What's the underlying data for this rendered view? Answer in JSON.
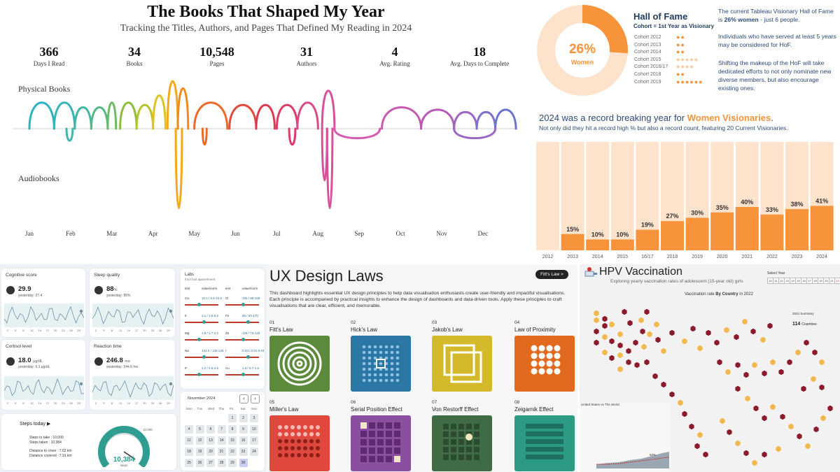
{
  "books": {
    "title": "The Books That Shaped My Year",
    "subtitle": "Tracking the Titles, Authors, and Pages That Defined My Reading in 2024",
    "stats": [
      {
        "value": "366",
        "label": "Days I Read"
      },
      {
        "value": "34",
        "label": "Books"
      },
      {
        "value": "10,548",
        "label": "Pages"
      },
      {
        "value": "31",
        "label": "Authors"
      },
      {
        "value": "4",
        "label": "Avg. Rating"
      },
      {
        "value": "18",
        "label": "Avg. Days to Complete"
      }
    ],
    "lane_physical": "Physical Books",
    "lane_audio": "Audiobooks",
    "months": [
      "Jan",
      "Feb",
      "Mar",
      "Apr",
      "May",
      "Jun",
      "Jul",
      "Aug",
      "Sep",
      "Oct",
      "Nov",
      "Dec"
    ]
  },
  "chart_data": [
    {
      "type": "arc-timeline",
      "title": "The Books That Shaped My Year",
      "x_categories": [
        "Jan",
        "Feb",
        "Mar",
        "Apr",
        "May",
        "Jun",
        "Jul",
        "Aug",
        "Sep",
        "Oct",
        "Nov",
        "Dec"
      ],
      "series": [
        {
          "name": "Physical Books",
          "books": [
            {
              "start": 0.0,
              "end": 0.6,
              "h": 0.55,
              "color": "#2bb3c0"
            },
            {
              "start": 0.6,
              "end": 1.1,
              "h": 0.55,
              "color": "#36b4b8"
            },
            {
              "start": 1.1,
              "end": 1.5,
              "h": 0.45,
              "color": "#3fb7a2"
            },
            {
              "start": 1.5,
              "end": 1.9,
              "h": 0.45,
              "color": "#56b886"
            },
            {
              "start": 1.9,
              "end": 2.1,
              "h": 0.55,
              "color": "#6cba62"
            },
            {
              "start": 2.2,
              "end": 2.6,
              "h": 0.55,
              "color": "#8dbd3a"
            },
            {
              "start": 2.6,
              "end": 3.0,
              "h": 0.5,
              "color": "#b6c428"
            },
            {
              "start": 3.0,
              "end": 3.3,
              "h": 0.7,
              "color": "#e0c31f"
            },
            {
              "start": 3.35,
              "end": 3.6,
              "h": 1.0,
              "color": "#f2a91c"
            },
            {
              "start": 3.6,
              "end": 3.85,
              "h": 0.85,
              "color": "#f08a1d"
            },
            {
              "start": 4.0,
              "end": 4.8,
              "h": 0.55,
              "color": "#ec6a25"
            },
            {
              "start": 4.85,
              "end": 5.5,
              "h": 0.5,
              "color": "#e04a3a"
            },
            {
              "start": 5.5,
              "end": 5.95,
              "h": 0.5,
              "color": "#de3a4f"
            },
            {
              "start": 6.0,
              "end": 6.5,
              "h": 0.5,
              "color": "#da3d6a"
            },
            {
              "start": 6.5,
              "end": 7.0,
              "h": 0.55,
              "color": "#d84a88"
            },
            {
              "start": 7.1,
              "end": 7.4,
              "h": 0.8,
              "color": "#d94f9a"
            },
            {
              "start": 8.55,
              "end": 9.5,
              "h": 0.45,
              "color": "#c85aad"
            },
            {
              "start": 9.5,
              "end": 10.3,
              "h": 0.4,
              "color": "#b45db6"
            },
            {
              "start": 10.3,
              "end": 10.85,
              "h": 0.35,
              "color": "#9b66c4"
            },
            {
              "start": 10.85,
              "end": 11.3,
              "h": 0.35,
              "color": "#7e6fcb"
            },
            {
              "start": 11.3,
              "end": 11.8,
              "h": 0.4,
              "color": "#6a74cf"
            }
          ]
        },
        {
          "name": "Audiobooks",
          "books": [
            {
              "start": 0.9,
              "end": 1.05,
              "h": 0.15,
              "color": "#3fb7b0"
            },
            {
              "start": 3.55,
              "end": 3.7,
              "h": 1.0,
              "color": "#f2a91c"
            },
            {
              "start": 4.2,
              "end": 4.3,
              "h": 0.2,
              "color": "#ec6a25"
            },
            {
              "start": 6.3,
              "end": 6.45,
              "h": 0.2,
              "color": "#da3d6a"
            },
            {
              "start": 7.1,
              "end": 7.22,
              "h": 0.65,
              "color": "#d94f9a"
            },
            {
              "start": 7.22,
              "end": 7.35,
              "h": 1.0,
              "color": "#d94f9a"
            },
            {
              "start": 7.4,
              "end": 8.5,
              "h": 0.12,
              "color": "#d65ab0"
            },
            {
              "start": 10.3,
              "end": 11.3,
              "h": 0.12,
              "color": "#9b66c4"
            }
          ]
        }
      ]
    },
    {
      "type": "pie",
      "title": "Hall of Fame",
      "labels": [
        "Women",
        "Other"
      ],
      "values": [
        26,
        74
      ],
      "center_label": "26%",
      "center_sub": "Women"
    },
    {
      "type": "bar",
      "title": "2024 was a record breaking year for Women Visionaries.",
      "categories": [
        "2012",
        "2013",
        "2014",
        "2015",
        "16/17",
        "2018",
        "2019",
        "2020",
        "2021",
        "2022",
        "2023",
        "2024"
      ],
      "values": [
        0,
        15,
        10,
        10,
        19,
        27,
        30,
        35,
        40,
        33,
        38,
        41
      ],
      "labels": [
        "",
        "15%",
        "10%",
        "10%",
        "19%",
        "27%",
        "30%",
        "35%",
        "40%",
        "33%",
        "38%",
        "41%"
      ],
      "ylim": [
        0,
        100
      ]
    }
  ],
  "women": {
    "donut_pct": "26%",
    "donut_label": "Women",
    "hof_title": "Hall of Fame",
    "hof_sub": "Cohort = 1st Year as Visionary",
    "cohorts": [
      {
        "name": "Cohort 2012",
        "dots": "●●"
      },
      {
        "name": "Cohort 2013",
        "dots": "●●"
      },
      {
        "name": "Cohort 2014",
        "dots": "●●"
      },
      {
        "name": "Cohort 2015",
        "dots": "●●●●●"
      },
      {
        "name": "Cohort 2016/17",
        "dots": "●●●●"
      },
      {
        "name": "Cohort 2018",
        "dots": "●●"
      },
      {
        "name": "Cohort 2019",
        "dots": "●●●●●●"
      }
    ],
    "text1_a": "The current Tableau Visionary Hall of Fame is ",
    "text1_b": "26% women",
    "text1_c": " - just 6 people.",
    "text2": "Individuals who have served at least 5 years may be considered for HoF.",
    "text3": "Shifting the makeup of the HoF will take dedicated efforts to not only nominate new diverse members, but also encourage existing ones.",
    "record_a": "2024 was a record breaking  year for ",
    "record_b": "Women Visionaries",
    "record_c": ".",
    "record_sub": "Not only did they hit a record high % but also a record count, featuring 20 Current Visionaries.",
    "accent": "#f7933a"
  },
  "health": {
    "cards": [
      {
        "title": "Cognitive score",
        "value": "29.9",
        "unit": "",
        "yesterday": "yesterday: 27.4"
      },
      {
        "title": "Sleep quality",
        "value": "88",
        "unit": "%",
        "yesterday": "yesterday: 85%"
      },
      {
        "title": "Cortisol level",
        "value": "18.0",
        "unit": "µg/dL",
        "yesterday": "yesterday: 6.1 µg/dL"
      },
      {
        "title": "Reaction time",
        "value": "246.8",
        "unit": "ms",
        "yesterday": "yesterday: 244.6 ms"
      }
    ],
    "ticks": [
      "2",
      "5",
      "8",
      "11",
      "14",
      "17",
      "20",
      "23",
      "26",
      "29"
    ],
    "labs_title": "Labs",
    "labs_sub": "from last appointment",
    "labs_head": [
      "test",
      "value/norm",
      "test",
      "value/norm"
    ],
    "labs_rows": [
      [
        "Ca",
        "10.4 / 8.5-10.5",
        "Cl",
        "105 / 98-106"
      ],
      [
        "K",
        "4.1 / 3.5-5.0",
        "Fe",
        "85 / 60-170"
      ],
      [
        "Mg",
        "1.8 / 1.7-2.2",
        "Zn",
        "129 / 70-120"
      ],
      [
        "Na",
        "144.0 / 135-145",
        "I",
        "0.03 / 0.01-0.04"
      ],
      [
        "P",
        "3.2 / 2.5-4.5",
        "Cu",
        "1.6 / 0.7-1.6"
      ]
    ],
    "steps_title": "Steps today ▶",
    "steps_lines": [
      "Steps to take : 10,000",
      "Steps taken : 10,384",
      "Distance to cover : 7.62 km",
      "Distance covered : 7.91 km"
    ],
    "gauge_value": "10,384",
    "gauge_unit": "steps",
    "gauge_max": "10,000",
    "steps_fraction": 1.04,
    "cal_title": "November 2024",
    "cal_days": [
      "Mon",
      "Tue",
      "Wed",
      "Thu",
      "Fri",
      "Sat",
      "Sun"
    ],
    "cal_dates": [
      "",
      "",
      "",
      "",
      "1",
      "2",
      "3",
      "4",
      "5",
      "6",
      "7",
      "8",
      "9",
      "10",
      "11",
      "12",
      "13",
      "14",
      "15",
      "16",
      "17",
      "18",
      "19",
      "20",
      "21",
      "22",
      "23",
      "24",
      "25",
      "26",
      "27",
      "28",
      "29",
      "30"
    ]
  },
  "ux": {
    "title": "UX Design Laws",
    "badge": "Fitt's Law >",
    "desc": "This dashboard highlights essential UX design principles to help data visualisation enthusiasts create user-friendly and impactful visualisations. Each principle is accompanied by practical insights to enhance the design of dashboards and data-driven tools. Apply these principles to craft visualisations that are clear, efficient, and memorable.",
    "laws": [
      {
        "num": "01",
        "name": "Fitt's Law",
        "color": "#5a8a3a"
      },
      {
        "num": "02",
        "name": "Hick's Law",
        "color": "#2a77a5"
      },
      {
        "num": "03",
        "name": "Jakob's Law",
        "color": "#d4b92a"
      },
      {
        "num": "04",
        "name": "Law of Proximity",
        "color": "#e26a1f"
      },
      {
        "num": "05",
        "name": "Miller's Law",
        "color": "#e0473d"
      },
      {
        "num": "06",
        "name": "Serial Position Effect",
        "color": "#8b4fa0"
      },
      {
        "num": "07",
        "name": "Von Restorff Effect",
        "color": "#3f6b45"
      },
      {
        "num": "08",
        "name": "Zeigarnik Effect",
        "color": "#2d9a84"
      }
    ]
  },
  "hpv": {
    "title": "HPV Vaccination",
    "subtitle": "Exploring yearly vaccination rates of adolescent (15-year old) girls",
    "select_year": "Select Year",
    "years": [
      "10",
      "11",
      "12",
      "13",
      "14",
      "15",
      "16",
      "17",
      "18",
      "19",
      "20",
      "21",
      "22"
    ],
    "map_title_a": "Vaccination rate ",
    "map_title_b": "By Country",
    "map_title_c": " in 2022",
    "summary_title": "2022 Summary",
    "summary_value": "114",
    "summary_unit": "Countries",
    "inset_title": "United States vs The World",
    "inset_value": "52%"
  }
}
